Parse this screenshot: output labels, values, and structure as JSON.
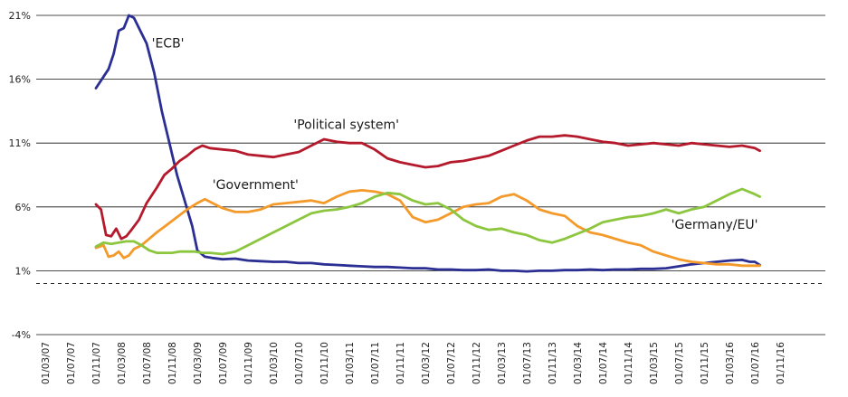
{
  "chart_data": {
    "type": "line",
    "title": "",
    "xlabel": "",
    "ylabel": "",
    "ylim": [
      -4,
      21
    ],
    "yticks": [
      -4,
      1,
      6,
      11,
      16,
      21
    ],
    "ytick_labels": [
      "-4%",
      "1%",
      "6%",
      "11%",
      "16%",
      "21%"
    ],
    "zero_line": "dashed",
    "grid": true,
    "x_ticks": [
      "01/03/07",
      "01/07/07",
      "01/11/07",
      "01/03/08",
      "01/07/08",
      "01/11/08",
      "01/03/09",
      "01/07/09",
      "01/11/09",
      "01/03/10",
      "01/07/10",
      "01/11/10",
      "01/03/11",
      "01/07/11",
      "01/11/11",
      "01/03/12",
      "01/07/12",
      "01/11/12",
      "01/03/13",
      "01/07/13",
      "01/11/13",
      "01/03/14",
      "01/07/14",
      "01/11/14",
      "01/03/15",
      "01/07/15",
      "01/11/15",
      "01/03/16",
      "01/07/16",
      "01/11/16"
    ],
    "series": [
      {
        "name": "'ECB'",
        "color": "#2b2f93",
        "points": [
          [
            2.0,
            15.3
          ],
          [
            2.3,
            16.2
          ],
          [
            2.5,
            16.8
          ],
          [
            2.7,
            18.0
          ],
          [
            2.9,
            19.8
          ],
          [
            3.1,
            20.0
          ],
          [
            3.3,
            21.0
          ],
          [
            3.5,
            20.8
          ],
          [
            3.7,
            20.0
          ],
          [
            4.0,
            18.8
          ],
          [
            4.3,
            16.5
          ],
          [
            4.6,
            13.5
          ],
          [
            4.9,
            11.0
          ],
          [
            5.2,
            8.5
          ],
          [
            5.5,
            6.5
          ],
          [
            5.8,
            4.5
          ],
          [
            6.0,
            2.6
          ],
          [
            6.3,
            2.1
          ],
          [
            6.6,
            2.0
          ],
          [
            7.0,
            1.9
          ],
          [
            7.5,
            1.95
          ],
          [
            8.0,
            1.8
          ],
          [
            8.5,
            1.75
          ],
          [
            9.0,
            1.7
          ],
          [
            9.5,
            1.7
          ],
          [
            10.0,
            1.6
          ],
          [
            10.5,
            1.6
          ],
          [
            11.0,
            1.5
          ],
          [
            11.5,
            1.45
          ],
          [
            12.0,
            1.4
          ],
          [
            12.5,
            1.35
          ],
          [
            13.0,
            1.3
          ],
          [
            13.5,
            1.3
          ],
          [
            14.0,
            1.25
          ],
          [
            14.5,
            1.2
          ],
          [
            15.0,
            1.2
          ],
          [
            15.5,
            1.1
          ],
          [
            16.0,
            1.1
          ],
          [
            16.5,
            1.05
          ],
          [
            17.0,
            1.05
          ],
          [
            17.5,
            1.1
          ],
          [
            18.0,
            1.0
          ],
          [
            18.5,
            1.0
          ],
          [
            19.0,
            0.95
          ],
          [
            19.5,
            1.0
          ],
          [
            20.0,
            1.0
          ],
          [
            20.5,
            1.05
          ],
          [
            21.0,
            1.05
          ],
          [
            21.5,
            1.1
          ],
          [
            22.0,
            1.05
          ],
          [
            22.5,
            1.1
          ],
          [
            23.0,
            1.1
          ],
          [
            23.5,
            1.15
          ],
          [
            24.0,
            1.15
          ],
          [
            24.5,
            1.2
          ],
          [
            25.0,
            1.35
          ],
          [
            25.5,
            1.5
          ],
          [
            26.0,
            1.6
          ],
          [
            26.5,
            1.7
          ],
          [
            27.0,
            1.8
          ],
          [
            27.5,
            1.85
          ],
          [
            27.8,
            1.7
          ],
          [
            28.0,
            1.7
          ],
          [
            28.2,
            1.45
          ]
        ]
      },
      {
        "name": "'Political system'",
        "color": "#b51a2c",
        "points": [
          [
            2.0,
            6.2
          ],
          [
            2.2,
            5.8
          ],
          [
            2.4,
            3.8
          ],
          [
            2.6,
            3.7
          ],
          [
            2.8,
            4.3
          ],
          [
            3.0,
            3.5
          ],
          [
            3.2,
            3.7
          ],
          [
            3.4,
            4.2
          ],
          [
            3.7,
            5.0
          ],
          [
            4.0,
            6.3
          ],
          [
            4.4,
            7.5
          ],
          [
            4.7,
            8.5
          ],
          [
            5.0,
            9.0
          ],
          [
            5.3,
            9.6
          ],
          [
            5.6,
            10.0
          ],
          [
            5.9,
            10.5
          ],
          [
            6.2,
            10.8
          ],
          [
            6.5,
            10.6
          ],
          [
            7.0,
            10.5
          ],
          [
            7.5,
            10.4
          ],
          [
            8.0,
            10.1
          ],
          [
            8.5,
            10.0
          ],
          [
            9.0,
            9.9
          ],
          [
            9.5,
            10.1
          ],
          [
            10.0,
            10.3
          ],
          [
            10.5,
            10.8
          ],
          [
            11.0,
            11.3
          ],
          [
            11.5,
            11.1
          ],
          [
            12.0,
            11.0
          ],
          [
            12.5,
            11.0
          ],
          [
            13.0,
            10.5
          ],
          [
            13.5,
            9.8
          ],
          [
            14.0,
            9.5
          ],
          [
            14.5,
            9.3
          ],
          [
            15.0,
            9.1
          ],
          [
            15.5,
            9.2
          ],
          [
            16.0,
            9.5
          ],
          [
            16.5,
            9.6
          ],
          [
            17.0,
            9.8
          ],
          [
            17.5,
            10.0
          ],
          [
            18.0,
            10.4
          ],
          [
            18.5,
            10.8
          ],
          [
            19.0,
            11.2
          ],
          [
            19.5,
            11.5
          ],
          [
            20.0,
            11.5
          ],
          [
            20.5,
            11.6
          ],
          [
            21.0,
            11.5
          ],
          [
            21.5,
            11.3
          ],
          [
            22.0,
            11.1
          ],
          [
            22.5,
            11.0
          ],
          [
            23.0,
            10.8
          ],
          [
            23.5,
            10.9
          ],
          [
            24.0,
            11.0
          ],
          [
            24.5,
            10.9
          ],
          [
            25.0,
            10.8
          ],
          [
            25.5,
            11.0
          ],
          [
            26.0,
            10.9
          ],
          [
            26.5,
            10.8
          ],
          [
            27.0,
            10.7
          ],
          [
            27.5,
            10.8
          ],
          [
            28.0,
            10.6
          ],
          [
            28.2,
            10.4
          ]
        ]
      },
      {
        "name": "'Government'",
        "color": "#f39a2b",
        "points": [
          [
            2.0,
            2.8
          ],
          [
            2.3,
            3.0
          ],
          [
            2.5,
            2.1
          ],
          [
            2.7,
            2.2
          ],
          [
            2.9,
            2.5
          ],
          [
            3.1,
            2.0
          ],
          [
            3.3,
            2.2
          ],
          [
            3.5,
            2.7
          ],
          [
            3.8,
            3.0
          ],
          [
            4.1,
            3.5
          ],
          [
            4.4,
            4.0
          ],
          [
            4.8,
            4.6
          ],
          [
            5.2,
            5.2
          ],
          [
            5.6,
            5.8
          ],
          [
            6.0,
            6.3
          ],
          [
            6.3,
            6.6
          ],
          [
            6.7,
            6.2
          ],
          [
            7.0,
            5.9
          ],
          [
            7.5,
            5.6
          ],
          [
            8.0,
            5.6
          ],
          [
            8.5,
            5.8
          ],
          [
            9.0,
            6.2
          ],
          [
            9.5,
            6.3
          ],
          [
            10.0,
            6.4
          ],
          [
            10.5,
            6.5
          ],
          [
            11.0,
            6.3
          ],
          [
            11.5,
            6.8
          ],
          [
            12.0,
            7.2
          ],
          [
            12.5,
            7.3
          ],
          [
            13.0,
            7.2
          ],
          [
            13.5,
            7.0
          ],
          [
            14.0,
            6.5
          ],
          [
            14.5,
            5.2
          ],
          [
            15.0,
            4.8
          ],
          [
            15.5,
            5.0
          ],
          [
            16.0,
            5.5
          ],
          [
            16.5,
            6.0
          ],
          [
            17.0,
            6.2
          ],
          [
            17.5,
            6.3
          ],
          [
            18.0,
            6.8
          ],
          [
            18.5,
            7.0
          ],
          [
            19.0,
            6.5
          ],
          [
            19.5,
            5.8
          ],
          [
            20.0,
            5.5
          ],
          [
            20.5,
            5.3
          ],
          [
            21.0,
            4.5
          ],
          [
            21.5,
            4.0
          ],
          [
            22.0,
            3.8
          ],
          [
            22.5,
            3.5
          ],
          [
            23.0,
            3.2
          ],
          [
            23.5,
            3.0
          ],
          [
            24.0,
            2.5
          ],
          [
            24.5,
            2.2
          ],
          [
            25.0,
            1.9
          ],
          [
            25.5,
            1.7
          ],
          [
            26.0,
            1.6
          ],
          [
            26.5,
            1.5
          ],
          [
            27.0,
            1.5
          ],
          [
            27.5,
            1.4
          ],
          [
            28.0,
            1.4
          ],
          [
            28.2,
            1.4
          ]
        ]
      },
      {
        "name": "'Germany/EU'",
        "color": "#8cc63f",
        "points": [
          [
            2.0,
            2.9
          ],
          [
            2.3,
            3.2
          ],
          [
            2.6,
            3.1
          ],
          [
            2.9,
            3.2
          ],
          [
            3.2,
            3.3
          ],
          [
            3.5,
            3.3
          ],
          [
            3.8,
            3.0
          ],
          [
            4.1,
            2.6
          ],
          [
            4.4,
            2.4
          ],
          [
            4.7,
            2.4
          ],
          [
            5.0,
            2.4
          ],
          [
            5.3,
            2.5
          ],
          [
            5.6,
            2.5
          ],
          [
            5.9,
            2.5
          ],
          [
            6.2,
            2.4
          ],
          [
            6.5,
            2.4
          ],
          [
            7.0,
            2.3
          ],
          [
            7.5,
            2.5
          ],
          [
            8.0,
            3.0
          ],
          [
            8.5,
            3.5
          ],
          [
            9.0,
            4.0
          ],
          [
            9.5,
            4.5
          ],
          [
            10.0,
            5.0
          ],
          [
            10.5,
            5.5
          ],
          [
            11.0,
            5.7
          ],
          [
            11.5,
            5.8
          ],
          [
            12.0,
            6.0
          ],
          [
            12.5,
            6.3
          ],
          [
            13.0,
            6.8
          ],
          [
            13.5,
            7.1
          ],
          [
            14.0,
            7.0
          ],
          [
            14.5,
            6.5
          ],
          [
            15.0,
            6.2
          ],
          [
            15.5,
            6.3
          ],
          [
            16.0,
            5.8
          ],
          [
            16.5,
            5.0
          ],
          [
            17.0,
            4.5
          ],
          [
            17.5,
            4.2
          ],
          [
            18.0,
            4.3
          ],
          [
            18.5,
            4.0
          ],
          [
            19.0,
            3.8
          ],
          [
            19.5,
            3.4
          ],
          [
            20.0,
            3.2
          ],
          [
            20.5,
            3.5
          ],
          [
            21.0,
            3.9
          ],
          [
            21.5,
            4.3
          ],
          [
            22.0,
            4.8
          ],
          [
            22.5,
            5.0
          ],
          [
            23.0,
            5.2
          ],
          [
            23.5,
            5.3
          ],
          [
            24.0,
            5.5
          ],
          [
            24.5,
            5.8
          ],
          [
            25.0,
            5.5
          ],
          [
            25.5,
            5.8
          ],
          [
            26.0,
            6.0
          ],
          [
            26.5,
            6.5
          ],
          [
            27.0,
            7.0
          ],
          [
            27.5,
            7.4
          ],
          [
            28.0,
            7.0
          ],
          [
            28.2,
            6.8
          ]
        ]
      }
    ],
    "annotations": [
      {
        "text": "'ECB'",
        "x": 4.2,
        "y": 18.5
      },
      {
        "text": "'Political system'",
        "x": 9.8,
        "y": 12.1
      },
      {
        "text": "'Government'",
        "x": 6.6,
        "y": 7.4
      },
      {
        "text": "'Germany/EU'",
        "x": 24.7,
        "y": 4.3
      }
    ]
  }
}
